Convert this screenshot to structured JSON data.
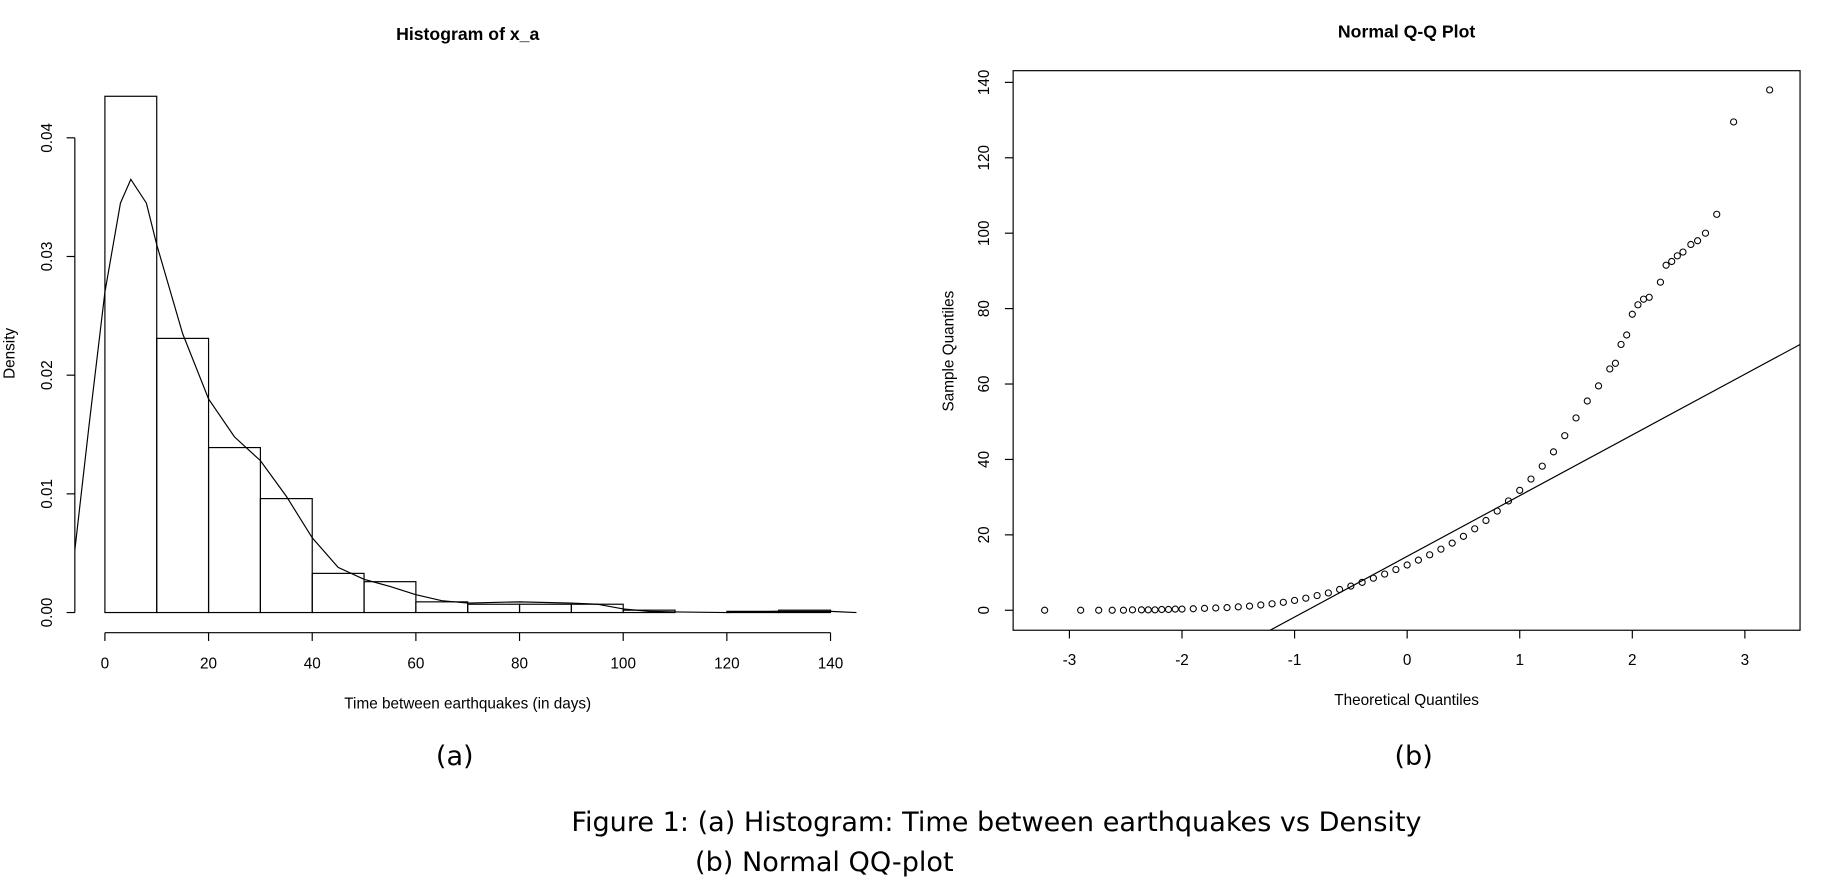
{
  "chart_data": [
    {
      "type": "histogram",
      "title": "Histogram of x_a",
      "x_label": "Time between earthquakes (in days)",
      "y_label": "Density",
      "bins": [
        0,
        10,
        20,
        30,
        40,
        50,
        60,
        70,
        80,
        90,
        100,
        110,
        120,
        130,
        140
      ],
      "values": [
        0.0435,
        0.0231,
        0.0139,
        0.0096,
        0.0033,
        0.0026,
        0.0009,
        0.0007,
        0.0007,
        0.0007,
        0.0002,
        0,
        0.0001,
        0.0002
      ],
      "density": {
        "x": [
          -6,
          -3,
          0,
          3,
          5,
          8,
          10,
          15,
          20,
          25,
          30,
          35,
          40,
          45,
          50,
          55,
          60,
          65,
          70,
          80,
          90,
          95,
          100,
          105,
          110,
          120,
          130,
          140,
          145
        ],
        "values": [
          0.0045,
          0.016,
          0.027,
          0.0345,
          0.0365,
          0.0345,
          0.031,
          0.0235,
          0.018,
          0.0148,
          0.0128,
          0.0098,
          0.0063,
          0.0038,
          0.0028,
          0.0022,
          0.0015,
          0.001,
          0.0008,
          0.0009,
          0.0008,
          0.0007,
          0.0003,
          0.0001,
          5e-05,
          0,
          0.0001,
          0.0001,
          0
        ]
      },
      "color": "#000000",
      "xlim": [
        -5.8,
        145.8
      ],
      "ylim": [
        -0.0017,
        0.0452
      ],
      "xticks": [
        0,
        20,
        40,
        60,
        80,
        100,
        120,
        140
      ],
      "yticks": [
        {
          "value": 0,
          "label": "0.00"
        },
        0.01,
        0.02,
        0.03,
        0.04
      ]
    },
    {
      "type": "qq",
      "title": "Normal Q-Q Plot",
      "x_label": "Theoretical Quantiles",
      "y_label": "Sample Quantiles",
      "x": [
        -3.22,
        -2.9,
        -2.74,
        -2.62,
        -2.52,
        -2.44,
        -2.36,
        -2.3,
        -2.24,
        -2.18,
        -2.12,
        -2.06,
        -2.0,
        -1.9,
        -1.8,
        -1.7,
        -1.6,
        -1.5,
        -1.4,
        -1.3,
        -1.2,
        -1.1,
        -1.0,
        -0.9,
        -0.8,
        -0.7,
        -0.6,
        -0.5,
        -0.4,
        -0.3,
        -0.2,
        -0.1,
        0,
        0.1,
        0.2,
        0.3,
        0.4,
        0.5,
        0.6,
        0.7,
        0.8,
        0.9,
        1.0,
        1.1,
        1.2,
        1.3,
        1.4,
        1.5,
        1.6,
        1.7,
        1.8,
        1.85,
        1.9,
        1.95,
        2.0,
        2.05,
        2.1,
        2.15,
        2.25,
        2.3,
        2.35,
        2.4,
        2.45,
        2.52,
        2.58,
        2.65,
        2.75,
        2.9,
        3.22
      ],
      "values": [
        0,
        0,
        0,
        0,
        0,
        0.1,
        0.1,
        0.1,
        0.1,
        0.2,
        0.2,
        0.3,
        0.3,
        0.4,
        0.5,
        0.6,
        0.7,
        0.9,
        1.1,
        1.4,
        1.7,
        2.1,
        2.6,
        3.2,
        3.9,
        4.6,
        5.5,
        6.4,
        7.4,
        8.5,
        9.6,
        10.8,
        12,
        13.3,
        14.7,
        16.2,
        17.8,
        19.6,
        21.6,
        23.8,
        26.3,
        29,
        31.8,
        34.8,
        38.2,
        42,
        46.3,
        51,
        55.5,
        59.5,
        64,
        65.5,
        70.5,
        73,
        78.5,
        81,
        82.5,
        83,
        87,
        91.5,
        92.5,
        94,
        95,
        97,
        98,
        100,
        105,
        129.5,
        138
      ],
      "qqline": {
        "intercept": 14.3,
        "slope": 16.1
      },
      "color": "#000000",
      "xlim": [
        -3.5,
        3.49
      ],
      "ylim": [
        -5.3,
        143.1
      ],
      "xticks": [
        -3,
        -2,
        -1,
        0,
        1,
        2,
        3
      ],
      "yticks": [
        0,
        20,
        40,
        60,
        80,
        100,
        120,
        140
      ]
    }
  ],
  "captions": {
    "a": "(a)",
    "b": "(b)",
    "figure": [
      "Figure 1: (a) Histogram: Time between earthquakes vs Density",
      "(b) Normal QQ-plot"
    ]
  }
}
